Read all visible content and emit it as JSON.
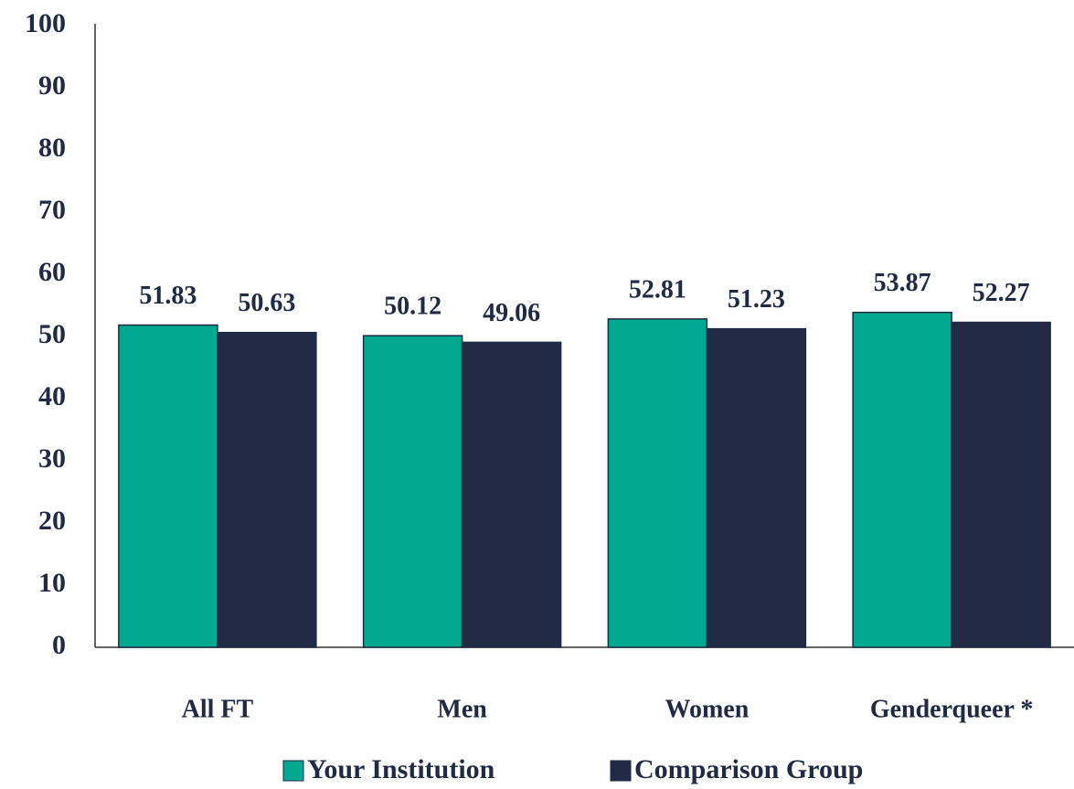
{
  "chart_data": {
    "type": "bar",
    "categories": [
      "All FT",
      "Men",
      "Women",
      "Genderqueer *"
    ],
    "series": [
      {
        "name": "Your Institution",
        "color": "#00a98f",
        "values": [
          51.83,
          50.12,
          52.81,
          53.87
        ]
      },
      {
        "name": "Comparison Group",
        "color": "#212b45",
        "values": [
          50.63,
          49.06,
          51.23,
          52.27
        ]
      }
    ],
    "ylim": [
      0,
      100
    ],
    "yticks": [
      0,
      10,
      20,
      30,
      40,
      50,
      60,
      70,
      80,
      90,
      100
    ],
    "grid": false,
    "legend": "bottom"
  }
}
